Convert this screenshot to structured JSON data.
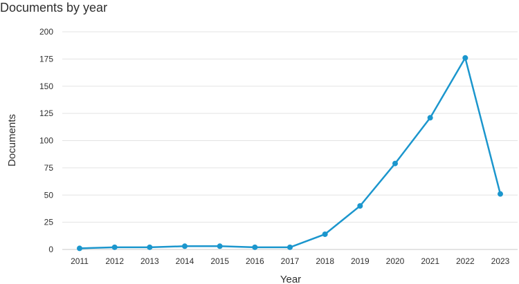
{
  "chart_data": {
    "type": "line",
    "title": "Documents by year",
    "xlabel": "Year",
    "ylabel": "Documents",
    "x": [
      "2011",
      "2012",
      "2013",
      "2014",
      "2015",
      "2016",
      "2017",
      "2018",
      "2019",
      "2020",
      "2021",
      "2022",
      "2023"
    ],
    "series": [
      {
        "values": [
          1,
          2,
          2,
          3,
          3,
          2,
          2,
          14,
          40,
          79,
          121,
          176,
          51
        ]
      }
    ],
    "ylim": [
      0,
      200
    ],
    "yticks": [
      0,
      25,
      50,
      75,
      100,
      125,
      150,
      175,
      200
    ],
    "grid": "horizontal",
    "legend": "none",
    "color": "#1b96cd"
  }
}
